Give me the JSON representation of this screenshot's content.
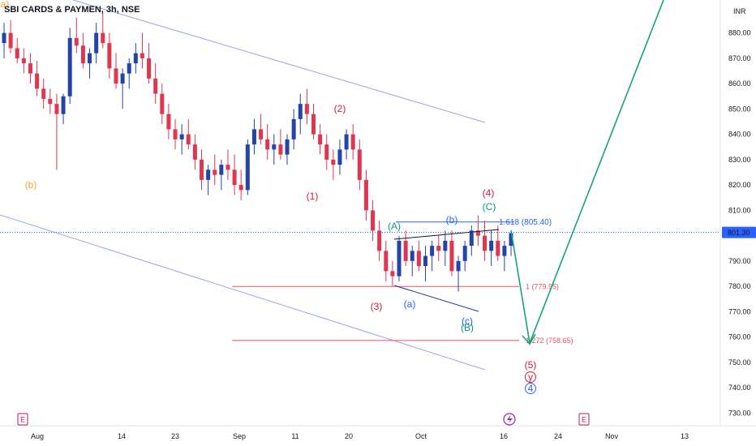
{
  "header": {
    "title": "SBI CARDS & PAYMEN, 3h, NSE",
    "currency": "INR"
  },
  "colors": {
    "up": "#2444a8",
    "down": "#e0364f",
    "channel": "#9aa6e8",
    "wave_red": "#d81b3a",
    "wave_green": "#089981",
    "wave_blue": "#2962ff",
    "wave_orange": "#f5a623",
    "fib_line": "#f05362",
    "projection": "#13a37f",
    "price_tag": "#2962ff",
    "event_icon": "#c2185b"
  },
  "chart_data": {
    "type": "candlestick",
    "y_axis": {
      "min": 725,
      "max": 893,
      "ticks": [
        "880.00",
        "870.00",
        "860.00",
        "850.00",
        "840.00",
        "830.00",
        "820.00",
        "810.00",
        "800.00",
        "790.00",
        "780.00",
        "770.00",
        "760.00",
        "750.00",
        "740.00",
        "730.00"
      ]
    },
    "x_axis": {
      "ticks": [
        "Aug",
        "14",
        "23",
        "Sep",
        "11",
        "20",
        "Oct",
        "16",
        "24",
        "Nov",
        "13"
      ]
    },
    "last_price": "801.30",
    "candles": [
      [
        876,
        884,
        870,
        880
      ],
      [
        880,
        885,
        872,
        874
      ],
      [
        874,
        878,
        868,
        870
      ],
      [
        870,
        874,
        864,
        868
      ],
      [
        868,
        872,
        860,
        864
      ],
      [
        864,
        869,
        855,
        858
      ],
      [
        858,
        862,
        850,
        854
      ],
      [
        854,
        858,
        848,
        852
      ],
      [
        852,
        856,
        826,
        848
      ],
      [
        848,
        856,
        844,
        855
      ],
      [
        855,
        882,
        852,
        878
      ],
      [
        878,
        886,
        872,
        875
      ],
      [
        875,
        880,
        866,
        868
      ],
      [
        868,
        874,
        862,
        872
      ],
      [
        872,
        884,
        868,
        880
      ],
      [
        880,
        888,
        874,
        876
      ],
      [
        876,
        880,
        862,
        866
      ],
      [
        866,
        872,
        858,
        860
      ],
      [
        860,
        866,
        850,
        864
      ],
      [
        864,
        870,
        858,
        868
      ],
      [
        868,
        876,
        864,
        872
      ],
      [
        872,
        880,
        866,
        870
      ],
      [
        870,
        876,
        860,
        862
      ],
      [
        862,
        868,
        852,
        856
      ],
      [
        856,
        860,
        844,
        848
      ],
      [
        848,
        852,
        838,
        842
      ],
      [
        842,
        846,
        834,
        838
      ],
      [
        838,
        844,
        832,
        840
      ],
      [
        840,
        846,
        834,
        836
      ],
      [
        836,
        840,
        826,
        830
      ],
      [
        830,
        834,
        818,
        822
      ],
      [
        822,
        828,
        816,
        826
      ],
      [
        826,
        832,
        820,
        824
      ],
      [
        824,
        830,
        818,
        828
      ],
      [
        828,
        834,
        822,
        826
      ],
      [
        826,
        832,
        816,
        820
      ],
      [
        820,
        826,
        814,
        818
      ],
      [
        818,
        838,
        816,
        836
      ],
      [
        836,
        846,
        832,
        842
      ],
      [
        842,
        848,
        836,
        838
      ],
      [
        838,
        844,
        830,
        834
      ],
      [
        834,
        840,
        828,
        836
      ],
      [
        836,
        842,
        830,
        832
      ],
      [
        832,
        840,
        828,
        838
      ],
      [
        838,
        850,
        834,
        846
      ],
      [
        846,
        856,
        840,
        852
      ],
      [
        852,
        858,
        844,
        848
      ],
      [
        848,
        852,
        838,
        840
      ],
      [
        840,
        844,
        832,
        836
      ],
      [
        836,
        840,
        826,
        830
      ],
      [
        830,
        834,
        822,
        828
      ],
      [
        828,
        838,
        824,
        834
      ],
      [
        834,
        842,
        830,
        840
      ],
      [
        840,
        844,
        830,
        834
      ],
      [
        834,
        838,
        818,
        822
      ],
      [
        822,
        826,
        806,
        810
      ],
      [
        810,
        814,
        798,
        802
      ],
      [
        802,
        806,
        790,
        794
      ],
      [
        794,
        798,
        782,
        786
      ],
      [
        786,
        790,
        780,
        784
      ],
      [
        784,
        800,
        782,
        798
      ],
      [
        798,
        802,
        788,
        790
      ],
      [
        790,
        796,
        784,
        794
      ],
      [
        794,
        798,
        786,
        788
      ],
      [
        788,
        796,
        782,
        792
      ],
      [
        792,
        798,
        786,
        796
      ],
      [
        796,
        800,
        790,
        794
      ],
      [
        794,
        802,
        788,
        798
      ],
      [
        798,
        802,
        784,
        786
      ],
      [
        786,
        792,
        778,
        790
      ],
      [
        790,
        798,
        786,
        796
      ],
      [
        796,
        804,
        792,
        802
      ],
      [
        802,
        808,
        796,
        800
      ],
      [
        800,
        806,
        790,
        794
      ],
      [
        794,
        802,
        788,
        798
      ],
      [
        798,
        804,
        790,
        792
      ],
      [
        792,
        798,
        786,
        796
      ],
      [
        796,
        802,
        792,
        801
      ]
    ],
    "waves": [
      {
        "label": "a)",
        "color": "wave_orange"
      },
      {
        "label": "(b)",
        "color": "wave_orange"
      },
      {
        "label": "(1)",
        "color": "wave_red"
      },
      {
        "label": "(2)",
        "color": "wave_red"
      },
      {
        "label": "(3)",
        "color": "wave_red"
      },
      {
        "label": "(4)",
        "color": "wave_red"
      },
      {
        "label": "(C)",
        "color": "wave_green"
      },
      {
        "label": "(A)",
        "color": "wave_green"
      },
      {
        "label": "(B)",
        "color": "wave_green"
      },
      {
        "label": "(b)",
        "color": "wave_blue"
      },
      {
        "label": "(a)",
        "color": "wave_blue"
      },
      {
        "label": "(c)",
        "color": "wave_blue"
      },
      {
        "label": "(5)",
        "color": "wave_red"
      },
      {
        "label": "y",
        "color": "wave_red"
      },
      {
        "label": "4",
        "color": "wave_blue"
      }
    ],
    "fib_levels": [
      {
        "label": "1.618 (805.40)",
        "value": 805.4,
        "color": "wave_blue"
      },
      {
        "label": "1 (779.95)",
        "value": 779.95,
        "color": "fib_line"
      },
      {
        "label": "1.272 (758.65)",
        "value": 758.65,
        "color": "fib_line"
      }
    ]
  }
}
